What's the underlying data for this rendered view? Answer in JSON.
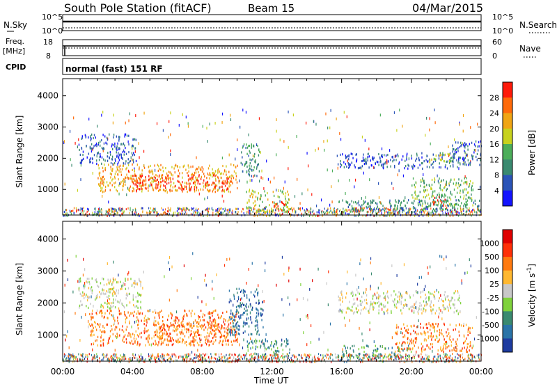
{
  "header": {
    "station": "South Pole Station (fitACF)",
    "beam": "Beam 15",
    "date": "04/Mar/2015"
  },
  "status_panels": {
    "nsky_label": "N.Sky",
    "nsky_ticks": [
      "10^5",
      "10^0"
    ],
    "nsearch_label": "N.Search",
    "nsearch_ticks": [
      "10^5",
      "10^0"
    ],
    "freq_label": "Freq.",
    "freq_unit": "[MHz]",
    "freq_ticks": [
      "18",
      "8"
    ],
    "nave_label": "Nave",
    "nave_ticks": [
      "60",
      "0"
    ],
    "cpid_label": "CPID",
    "cpid_value": "normal (fast) 151 RF"
  },
  "chart_data": [
    {
      "type": "heatmap",
      "name": "power-panel",
      "ylabel": "Slant Range [km]",
      "ylim": [
        180,
        4550
      ],
      "yticks": [
        "1000",
        "2000",
        "3000",
        "4000"
      ],
      "colorbar_label": "Power [dB]",
      "colorbar_ticks": [
        "4",
        "8",
        "12",
        "16",
        "20",
        "24",
        "28"
      ],
      "colors": [
        "#1414ff",
        "#2b54b8",
        "#3a8a70",
        "#4cae5a",
        "#c8d21e",
        "#f0a514",
        "#ff6a0a",
        "#ff1a0a"
      ],
      "regions": [
        {
          "x0": 0.9,
          "x1": 4.2,
          "y0": 1850,
          "y1": 2800,
          "level": 1
        },
        {
          "x0": 2.0,
          "x1": 10.0,
          "y0": 950,
          "y1": 1850,
          "level": 5
        },
        {
          "x0": 4.0,
          "x1": 9.5,
          "y0": 1000,
          "y1": 1500,
          "level": 7
        },
        {
          "x0": 10.2,
          "x1": 11.3,
          "y0": 1400,
          "y1": 2500,
          "level": 2
        },
        {
          "x0": 10.5,
          "x1": 13.0,
          "y0": 300,
          "y1": 1000,
          "level": 4
        },
        {
          "x0": 12.0,
          "x1": 12.8,
          "y0": 350,
          "y1": 650,
          "level": 7
        },
        {
          "x0": 15.7,
          "x1": 22.8,
          "y0": 1700,
          "y1": 2200,
          "level": 1
        },
        {
          "x0": 21.0,
          "x1": 22.8,
          "y0": 1900,
          "y1": 2200,
          "level": 4
        },
        {
          "x0": 22.3,
          "x1": 24.0,
          "y0": 1800,
          "y1": 2600,
          "level": 1
        },
        {
          "x0": 15.8,
          "x1": 24.0,
          "y0": 300,
          "y1": 700,
          "level": 2
        },
        {
          "x0": 20.0,
          "x1": 23.5,
          "y0": 500,
          "y1": 1400,
          "level": 3
        },
        {
          "x0": 21.2,
          "x1": 22.0,
          "y0": 500,
          "y1": 800,
          "level": 7
        }
      ]
    },
    {
      "type": "heatmap",
      "name": "velocity-panel",
      "ylabel": "Slant Range [km]",
      "ylim": [
        180,
        4550
      ],
      "yticks": [
        "1000",
        "2000",
        "3000",
        "4000"
      ],
      "colorbar_label": "Velocity [m s-1]",
      "colorbar_ticks": [
        "1000",
        "500",
        "100",
        "25",
        "-25",
        "-100",
        "-500",
        "-1000"
      ],
      "colors": [
        "#1e3ca0",
        "#2a74a8",
        "#3a8a70",
        "#7fd23c",
        "#c8c8c8",
        "#ffb830",
        "#ff7a10",
        "#ff3008",
        "#e00000"
      ],
      "regions": [
        {
          "x0": 0.9,
          "x1": 4.5,
          "y0": 1850,
          "y1": 2800,
          "level": 4
        },
        {
          "x0": 1.5,
          "x1": 10.0,
          "y0": 700,
          "y1": 1800,
          "level": 6
        },
        {
          "x0": 5.5,
          "x1": 9.5,
          "y0": 800,
          "y1": 1400,
          "level": 6
        },
        {
          "x0": 9.5,
          "x1": 11.5,
          "y0": 1000,
          "y1": 2500,
          "level": 1
        },
        {
          "x0": 10.5,
          "x1": 13.0,
          "y0": 300,
          "y1": 900,
          "level": 2
        },
        {
          "x0": 15.7,
          "x1": 22.8,
          "y0": 1700,
          "y1": 2400,
          "level": 4
        },
        {
          "x0": 19.0,
          "x1": 23.5,
          "y0": 500,
          "y1": 1400,
          "level": 6
        },
        {
          "x0": 16.0,
          "x1": 20.0,
          "y0": 300,
          "y1": 700,
          "level": 2
        }
      ]
    }
  ],
  "x_axis": {
    "label": "Time UT",
    "ticks": [
      "00:00",
      "04:00",
      "08:00",
      "12:00",
      "16:00",
      "20:00",
      "00:00"
    ]
  }
}
